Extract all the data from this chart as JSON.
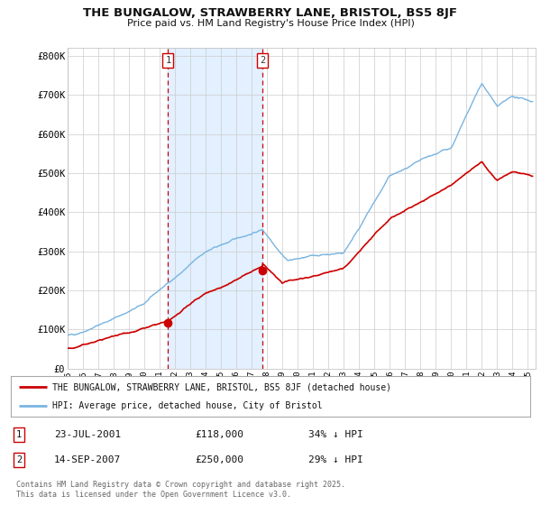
{
  "title": "THE BUNGALOW, STRAWBERRY LANE, BRISTOL, BS5 8JF",
  "subtitle": "Price paid vs. HM Land Registry's House Price Index (HPI)",
  "background_color": "#ffffff",
  "plot_bg_color": "#ffffff",
  "grid_color": "#cccccc",
  "hpi_color": "#7ab5e0",
  "price_color": "#cc0000",
  "shade_color": "#ddeeff",
  "purchase1_date_num": 2001.55,
  "purchase2_date_num": 2007.71,
  "purchase1_price": 118000,
  "purchase2_price": 250000,
  "legend_line1": "THE BUNGALOW, STRAWBERRY LANE, BRISTOL, BS5 8JF (detached house)",
  "legend_line2": "HPI: Average price, detached house, City of Bristol",
  "table_row1": [
    "1",
    "23-JUL-2001",
    "£118,000",
    "34% ↓ HPI"
  ],
  "table_row2": [
    "2",
    "14-SEP-2007",
    "£250,000",
    "29% ↓ HPI"
  ],
  "footer": "Contains HM Land Registry data © Crown copyright and database right 2025.\nThis data is licensed under the Open Government Licence v3.0.",
  "ylim": [
    0,
    820000
  ],
  "xlim_start": 1995.0,
  "xlim_end": 2025.5,
  "yticks": [
    0,
    100000,
    200000,
    300000,
    400000,
    500000,
    600000,
    700000,
    800000
  ],
  "ytick_labels": [
    "£0",
    "£100K",
    "£200K",
    "£300K",
    "£400K",
    "£500K",
    "£600K",
    "£700K",
    "£800K"
  ]
}
